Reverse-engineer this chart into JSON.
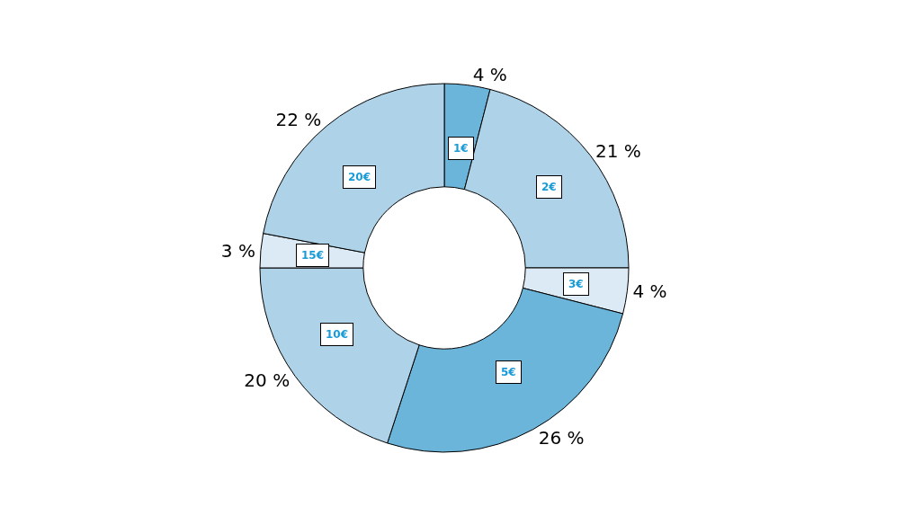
{
  "chart_data": {
    "type": "donut",
    "categories": [
      "1€",
      "2€",
      "3€",
      "5€",
      "10€",
      "15€",
      "20€"
    ],
    "values": [
      4,
      21,
      4,
      26,
      20,
      3,
      22
    ],
    "value_labels": [
      "4 %",
      "21 %",
      "4 %",
      "26 %",
      "20 %",
      "3 %",
      "22 %"
    ],
    "colors": [
      "#6cb5da",
      "#aed3e9",
      "#dbeaf5",
      "#6cb5da",
      "#aed3e9",
      "#dbeaf5",
      "#aed3e9"
    ],
    "legend": false
  }
}
